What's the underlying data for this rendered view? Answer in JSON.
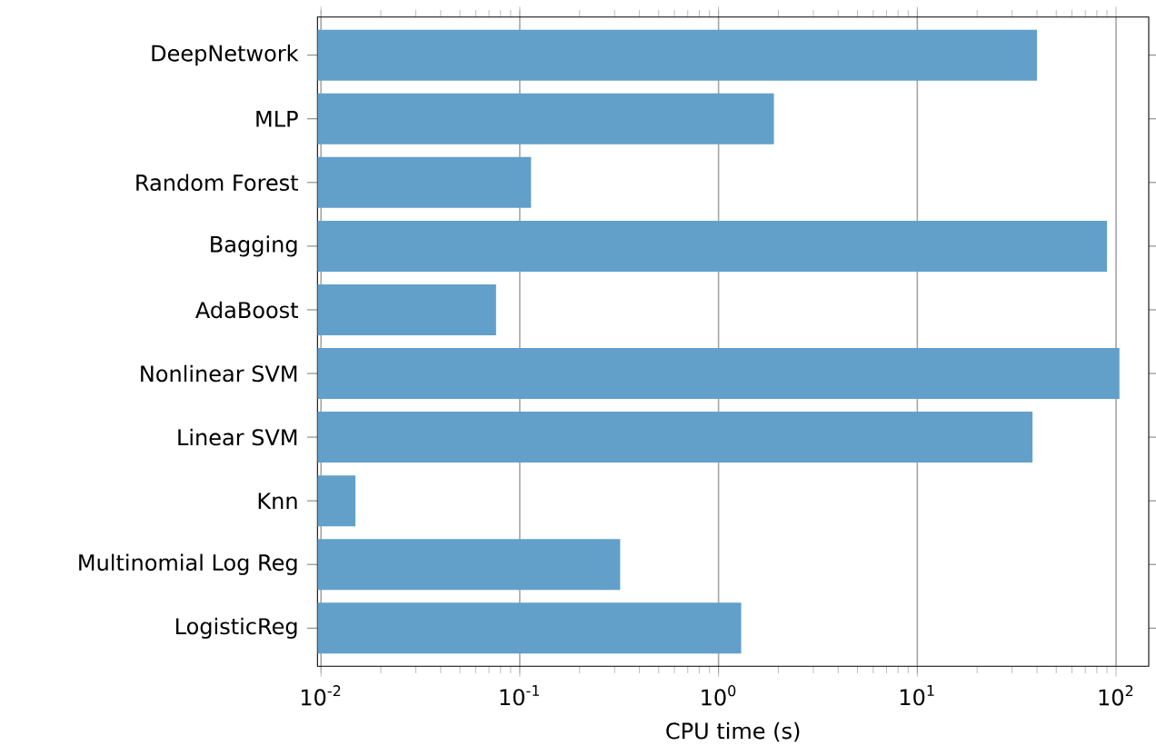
{
  "chart_data": {
    "type": "bar",
    "orientation": "horizontal",
    "xlabel": "CPU time (s)",
    "categories": [
      "DeepNetwork",
      "MLP",
      "Random Forest",
      "Bagging",
      "AdaBoost",
      "Nonlinear SVM",
      "Linear SVM",
      "Knn",
      "Multinomial Log Reg",
      "LogisticReg"
    ],
    "values": [
      40,
      1.9,
      0.114,
      90,
      0.076,
      104,
      38,
      0.0149,
      0.32,
      1.3
    ],
    "color": "#62a0ca",
    "log": "x",
    "grid": "x",
    "xlim": [
      0.0096,
      146
    ],
    "xticks": [
      {
        "value": 0.01,
        "label": "10$^{-2}$"
      },
      {
        "value": 0.1,
        "label": "10$^{-1}$"
      },
      {
        "value": 1,
        "label": "10$^{0}$"
      },
      {
        "value": 10,
        "label": "10$^{1}$"
      },
      {
        "value": 100,
        "label": "10$^{2}$"
      }
    ]
  }
}
